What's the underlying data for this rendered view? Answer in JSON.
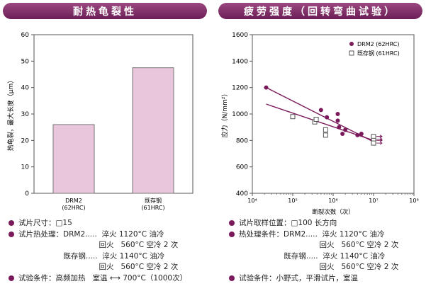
{
  "left_panel": {
    "title": "耐热龟裂性",
    "notes": [
      {
        "bullet": true,
        "text": "试片尺寸：□15"
      },
      {
        "bullet": true,
        "text": "试片热处理：DRM2.....  淬火 1120°C 油冷"
      },
      {
        "bullet": false,
        "text": "                                  回火   560°C 空冷 2 次"
      },
      {
        "bullet": false,
        "text": "                   既存钢.....  淬火 1140°C 油冷"
      },
      {
        "bullet": false,
        "text": "                                  回火   560°C 空冷 2 次"
      },
      {
        "bullet": true,
        "text": "试验条件：高频加热   室温 ⟷ 700°C（1000次）"
      }
    ]
  },
  "right_panel": {
    "title": "疲劳强度（回转弯曲试验）",
    "notes": [
      {
        "bullet": true,
        "text": "试片取样位置：□100 长方向"
      },
      {
        "bullet": true,
        "text": "热处理条件：DRM2.....  淬火 1120°C 油冷"
      },
      {
        "bullet": false,
        "text": "                                  回火   560°C 空冷 2 次"
      },
      {
        "bullet": false,
        "text": "                   既存钢.....  淬火 1140°C 油冷"
      },
      {
        "bullet": false,
        "text": "                                  回火   560°C 空冷 2 次"
      },
      {
        "bullet": true,
        "text": "试验条件：小野式，平滑试片，室温"
      }
    ]
  },
  "chart_data": [
    {
      "type": "bar",
      "title": "耐热龟裂性",
      "categories": [
        "DRM2\n(62HRC)",
        "既存钢\n(61HRC)"
      ],
      "values": [
        26,
        47.5
      ],
      "ylabel": "热龟裂，最大长度（μm）",
      "ylim": [
        0,
        60
      ],
      "yticks": [
        0,
        10,
        20,
        30,
        40,
        50,
        60
      ],
      "grid": false,
      "colors": {
        "bar": "#e9c6dc",
        "bar_stroke": "#777777"
      }
    },
    {
      "type": "scatter",
      "title": "疲劳强度（回转弯曲试验）",
      "xlabel": "断裂次数（次）",
      "ylabel": "应力（N/mm²）",
      "xscale": "log",
      "xlim": [
        10000,
        100000000
      ],
      "ylim": [
        400,
        1600
      ],
      "xtick_labels": [
        "10⁴",
        "10⁵",
        "10⁶",
        "10⁷",
        "10⁸"
      ],
      "yticks": [
        400,
        600,
        800,
        1000,
        1200,
        1400,
        1600
      ],
      "legend": "top-right",
      "series": [
        {
          "name": "DRM2 (62HRC)",
          "marker": "filled-circle",
          "color": "#7a1a5a",
          "points": [
            [
              22000,
              1200
            ],
            [
              500000,
              1030
            ],
            [
              700000,
              975
            ],
            [
              1300000,
              1000
            ],
            [
              1300000,
              950
            ],
            [
              1400000,
              900
            ],
            [
              1700000,
              850
            ],
            [
              2000000,
              880
            ],
            [
              4000000,
              840
            ],
            [
              5000000,
              850
            ]
          ],
          "runouts": [
            [
              10000000,
              830
            ],
            [
              10000000,
              810
            ]
          ],
          "trend": [
            [
              22000,
              1200
            ],
            [
              10000000,
              790
            ]
          ]
        },
        {
          "name": "既存钢 (61HRC)",
          "marker": "open-square",
          "color": "#7a1a5a",
          "points": [
            [
              100000,
              980
            ],
            [
              350000,
              940
            ],
            [
              380000,
              960
            ],
            [
              650000,
              880
            ],
            [
              650000,
              840
            ]
          ],
          "runouts": [
            [
              10000000,
              830
            ],
            [
              10000000,
              800
            ],
            [
              10000000,
              780
            ]
          ],
          "trend": [
            [
              22000,
              1075
            ],
            [
              10000000,
              800
            ]
          ]
        }
      ]
    }
  ]
}
